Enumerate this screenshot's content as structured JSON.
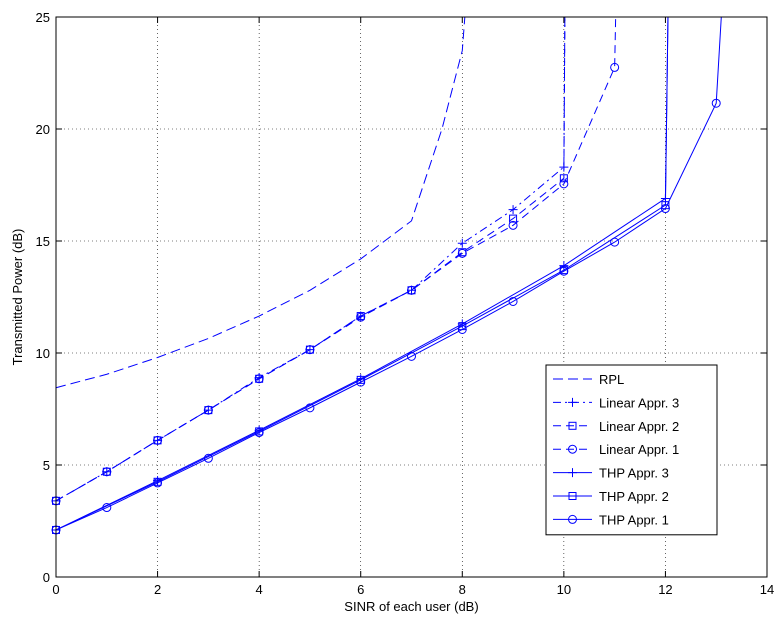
{
  "chart_data": {
    "type": "line",
    "xlabel": "SINR of each user  (dB)",
    "ylabel": "Transmitted Power (dB)",
    "xlim": [
      0,
      14
    ],
    "ylim": [
      0,
      25
    ],
    "xticks": [
      0,
      2,
      4,
      6,
      8,
      10,
      12,
      14
    ],
    "yticks": [
      0,
      5,
      10,
      15,
      20,
      25
    ],
    "grid": true,
    "legend_position": "bottom-right",
    "line_color": "#0000ff",
    "series": [
      {
        "name": "RPL",
        "style": "dashed-long",
        "marker": "none",
        "x": [
          0,
          1,
          2,
          3,
          4,
          5,
          6,
          7,
          7.6,
          8.0,
          8.05
        ],
        "y": [
          8.45,
          9.05,
          9.8,
          10.65,
          11.65,
          12.8,
          14.2,
          15.9,
          20.0,
          23.5,
          25
        ]
      },
      {
        "name": "Linear Appr. 3",
        "style": "dashdot",
        "marker": "plus",
        "x": [
          0,
          1,
          2,
          3,
          4,
          5,
          6,
          7,
          8,
          9,
          10,
          10.02
        ],
        "y": [
          3.4,
          4.7,
          6.1,
          7.45,
          8.9,
          10.15,
          11.65,
          12.8,
          14.9,
          16.4,
          18.3,
          25
        ]
      },
      {
        "name": "Linear Appr. 2",
        "style": "dashed",
        "marker": "square",
        "x": [
          0,
          1,
          2,
          3,
          4,
          5,
          6,
          7,
          8,
          9,
          10,
          10.02
        ],
        "y": [
          3.4,
          4.7,
          6.1,
          7.45,
          8.85,
          10.15,
          11.65,
          12.8,
          14.5,
          16.0,
          17.8,
          25
        ]
      },
      {
        "name": "Linear Appr. 1",
        "style": "dashed",
        "marker": "circle",
        "x": [
          0,
          1,
          2,
          3,
          4,
          5,
          6,
          7,
          8,
          9,
          10,
          11,
          11.02
        ],
        "y": [
          3.4,
          4.7,
          6.1,
          7.45,
          8.85,
          10.15,
          11.6,
          12.8,
          14.45,
          15.7,
          17.55,
          22.75,
          25
        ]
      },
      {
        "name": "THP Appr. 3",
        "style": "solid",
        "marker": "plus",
        "x": [
          0,
          2,
          4,
          6,
          8,
          10,
          12,
          12.05
        ],
        "y": [
          2.1,
          4.3,
          6.55,
          8.85,
          11.3,
          13.9,
          16.9,
          25
        ]
      },
      {
        "name": "THP Appr. 2",
        "style": "solid",
        "marker": "square",
        "x": [
          0,
          2,
          4,
          6,
          8,
          10,
          12,
          12.05
        ],
        "y": [
          2.1,
          4.25,
          6.5,
          8.8,
          11.2,
          13.7,
          16.6,
          25
        ]
      },
      {
        "name": "THP Appr. 1",
        "style": "solid",
        "marker": "circle",
        "x": [
          0,
          1,
          2,
          3,
          4,
          5,
          6,
          7,
          8,
          9,
          10,
          11,
          12,
          13,
          13.1
        ],
        "y": [
          2.1,
          3.1,
          4.2,
          5.3,
          6.45,
          7.55,
          8.7,
          9.85,
          11.05,
          12.3,
          13.65,
          14.95,
          16.45,
          21.15,
          25
        ]
      }
    ]
  }
}
